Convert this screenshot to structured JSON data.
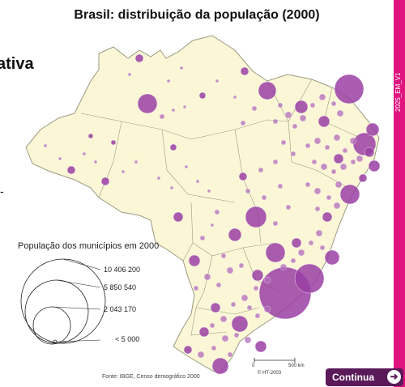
{
  "header": {
    "title": "Brasil: distribuição da população (2000)"
  },
  "side": {
    "partial_word": "ativa",
    "dash": "-"
  },
  "strip": {
    "code": "2025_EM_V1"
  },
  "legend": {
    "title": "População dos municípios em 2000",
    "values": [
      "10 406 200",
      "5 850 540",
      "2 043 170",
      "< 5 000"
    ]
  },
  "source": "Fonte: IBGE, Censo demográfico 2000",
  "scale": {
    "zero": "0",
    "distance": "500 km",
    "copyright": "© HT-2003"
  },
  "nav": {
    "continue_label": "Continua"
  },
  "colors": {
    "land": "#fbf7d6",
    "border": "#9a9a82",
    "city": "#9a3fa4",
    "strip": "#e0147e",
    "button": "#5a1a5a"
  }
}
